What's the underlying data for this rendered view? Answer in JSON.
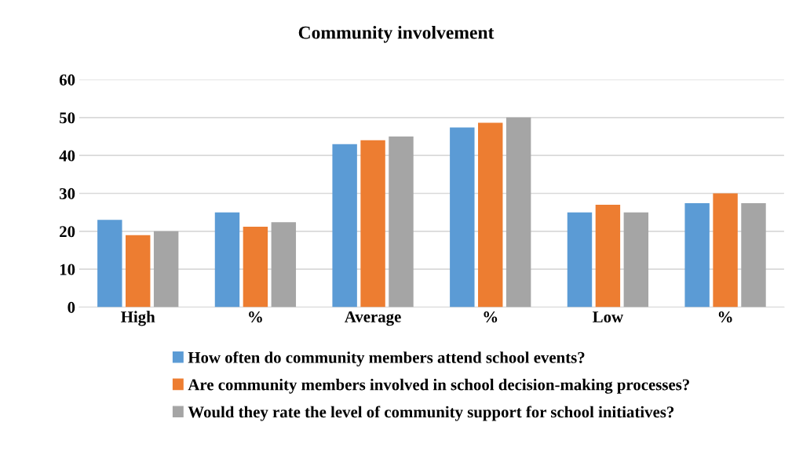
{
  "chart_data": {
    "type": "bar",
    "title": "Community involvement",
    "categories": [
      "High",
      "%",
      "Average",
      "%",
      "Low",
      "%"
    ],
    "series": [
      {
        "name": "How often do community members attend school events?",
        "color": "#5b9bd5",
        "values": [
          23,
          25,
          43,
          47.4,
          25,
          27.4
        ]
      },
      {
        "name": "Are community members involved in school decision-making processes?",
        "color": "#ed7d31",
        "values": [
          19,
          21.2,
          44,
          48.6,
          27,
          30
        ]
      },
      {
        "name": "Would they rate the level of community support for school initiatives?",
        "color": "#a5a5a5",
        "values": [
          20,
          22.4,
          45,
          50,
          25,
          27.4
        ]
      }
    ],
    "ylim": [
      0,
      60
    ],
    "yticks": [
      0,
      10,
      20,
      30,
      40,
      50,
      60
    ],
    "grid": "y",
    "legend": "bottom"
  }
}
